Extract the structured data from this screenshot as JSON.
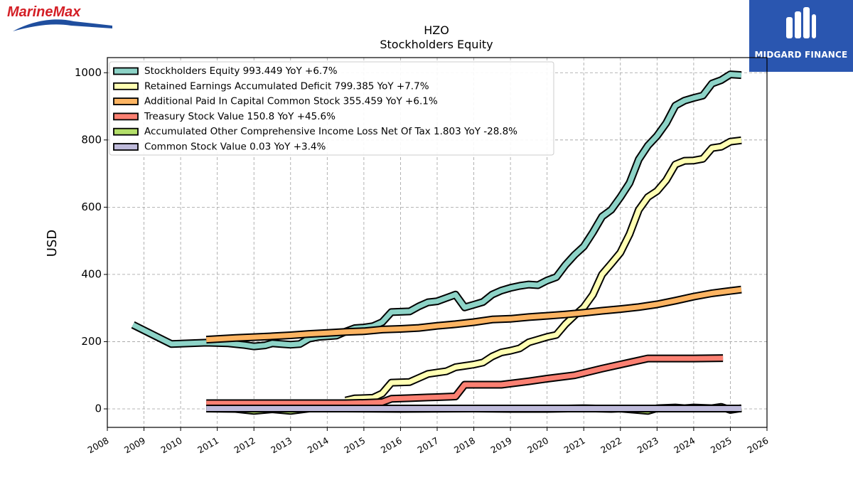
{
  "logos": {
    "left_text": "MarineMax",
    "right_text": "MIDGARD FINANCE"
  },
  "chart_data": {
    "type": "line",
    "title": "HZO",
    "subtitle": "Stockholders  Equity",
    "xlabel": "",
    "ylabel": "USD",
    "xlim": [
      2008,
      2026
    ],
    "ylim": [
      -55,
      1045
    ],
    "x_ticks": [
      "2008",
      "2009",
      "2010",
      "2011",
      "2012",
      "2013",
      "2014",
      "2015",
      "2016",
      "2017",
      "2018",
      "2019",
      "2020",
      "2021",
      "2022",
      "2023",
      "2024",
      "2025",
      "2026"
    ],
    "y_ticks": [
      0,
      200,
      400,
      600,
      800,
      1000
    ],
    "grid": true,
    "legend_position": "top-left",
    "series": [
      {
        "name": "Stockholders Equity",
        "legend": "Stockholders Equity  993.449 YoY +6.7%",
        "color": "#8dd3c7",
        "points": [
          [
            2008.7,
            250
          ],
          [
            2009.75,
            193
          ],
          [
            2010.7,
            197
          ],
          [
            2011.3,
            195
          ],
          [
            2011.75,
            190
          ],
          [
            2012.0,
            186
          ],
          [
            2012.3,
            189
          ],
          [
            2012.5,
            195
          ],
          [
            2012.75,
            193
          ],
          [
            2013.0,
            191
          ],
          [
            2013.25,
            193
          ],
          [
            2013.5,
            209
          ],
          [
            2013.75,
            214
          ],
          [
            2014.0,
            216
          ],
          [
            2014.25,
            218
          ],
          [
            2014.5,
            230
          ],
          [
            2014.75,
            240
          ],
          [
            2015.0,
            242
          ],
          [
            2015.25,
            246
          ],
          [
            2015.5,
            258
          ],
          [
            2015.75,
            288
          ],
          [
            2016.25,
            290
          ],
          [
            2016.5,
            305
          ],
          [
            2016.75,
            317
          ],
          [
            2017.0,
            320
          ],
          [
            2017.25,
            330
          ],
          [
            2017.5,
            340
          ],
          [
            2017.75,
            302
          ],
          [
            2018.0,
            310
          ],
          [
            2018.25,
            318
          ],
          [
            2018.5,
            340
          ],
          [
            2018.75,
            352
          ],
          [
            2019.0,
            360
          ],
          [
            2019.25,
            366
          ],
          [
            2019.5,
            370
          ],
          [
            2019.75,
            368
          ],
          [
            2020.0,
            382
          ],
          [
            2020.25,
            392
          ],
          [
            2020.5,
            428
          ],
          [
            2020.75,
            458
          ],
          [
            2021.0,
            483
          ],
          [
            2021.25,
            525
          ],
          [
            2021.5,
            572
          ],
          [
            2021.75,
            592
          ],
          [
            2022.0,
            630
          ],
          [
            2022.25,
            672
          ],
          [
            2022.5,
            742
          ],
          [
            2022.75,
            783
          ],
          [
            2023.0,
            812
          ],
          [
            2023.25,
            850
          ],
          [
            2023.5,
            902
          ],
          [
            2023.75,
            917
          ],
          [
            2024.0,
            925
          ],
          [
            2024.25,
            932
          ],
          [
            2024.5,
            968
          ],
          [
            2024.75,
            978
          ],
          [
            2025.0,
            995
          ],
          [
            2025.3,
            993
          ]
        ]
      },
      {
        "name": "Retained Earnings Accumulated Deficit",
        "legend": "Retained Earnings Accumulated Deficit  799.385 YoY +7.7%",
        "color": "#ffffb3",
        "points": [
          [
            2014.5,
            25
          ],
          [
            2014.75,
            31
          ],
          [
            2015.0,
            32
          ],
          [
            2015.25,
            33
          ],
          [
            2015.5,
            46
          ],
          [
            2015.75,
            78
          ],
          [
            2016.25,
            80
          ],
          [
            2016.5,
            92
          ],
          [
            2016.75,
            104
          ],
          [
            2017.0,
            108
          ],
          [
            2017.25,
            112
          ],
          [
            2017.5,
            124
          ],
          [
            2017.75,
            128
          ],
          [
            2018.0,
            132
          ],
          [
            2018.25,
            138
          ],
          [
            2018.5,
            156
          ],
          [
            2018.75,
            168
          ],
          [
            2019.0,
            173
          ],
          [
            2019.25,
            180
          ],
          [
            2019.5,
            198
          ],
          [
            2019.75,
            206
          ],
          [
            2020.0,
            214
          ],
          [
            2020.25,
            220
          ],
          [
            2020.5,
            252
          ],
          [
            2020.75,
            278
          ],
          [
            2021.0,
            302
          ],
          [
            2021.25,
            340
          ],
          [
            2021.5,
            400
          ],
          [
            2021.75,
            432
          ],
          [
            2022.0,
            465
          ],
          [
            2022.25,
            520
          ],
          [
            2022.5,
            592
          ],
          [
            2022.75,
            630
          ],
          [
            2023.0,
            648
          ],
          [
            2023.25,
            680
          ],
          [
            2023.5,
            727
          ],
          [
            2023.75,
            738
          ],
          [
            2024.0,
            739
          ],
          [
            2024.25,
            744
          ],
          [
            2024.5,
            776
          ],
          [
            2024.75,
            780
          ],
          [
            2025.0,
            795
          ],
          [
            2025.3,
            799
          ]
        ]
      },
      {
        "name": "Additional Paid In Capital Common Stock",
        "legend": "Additional Paid In Capital Common Stock  355.459 YoY +6.1%",
        "color": "#fdb462",
        "points": [
          [
            2010.7,
            206
          ],
          [
            2011.5,
            211
          ],
          [
            2012.5,
            216
          ],
          [
            2013.0,
            219
          ],
          [
            2013.5,
            223
          ],
          [
            2014.0,
            226
          ],
          [
            2014.5,
            229
          ],
          [
            2015.0,
            231
          ],
          [
            2015.5,
            236
          ],
          [
            2016.0,
            238
          ],
          [
            2016.5,
            241
          ],
          [
            2017.0,
            247
          ],
          [
            2017.5,
            252
          ],
          [
            2018.0,
            258
          ],
          [
            2018.5,
            266
          ],
          [
            2019.0,
            268
          ],
          [
            2019.5,
            273
          ],
          [
            2020.0,
            277
          ],
          [
            2020.5,
            281
          ],
          [
            2021.0,
            286
          ],
          [
            2021.5,
            292
          ],
          [
            2022.0,
            297
          ],
          [
            2022.5,
            303
          ],
          [
            2023.0,
            311
          ],
          [
            2023.5,
            322
          ],
          [
            2024.0,
            334
          ],
          [
            2024.5,
            344
          ],
          [
            2025.0,
            351
          ],
          [
            2025.3,
            355
          ]
        ]
      },
      {
        "name": "Treasury Stock Value",
        "legend": "Treasury Stock Value  150.8 YoY +45.6%",
        "color": "#fb8072",
        "points": [
          [
            2010.7,
            17
          ],
          [
            2011.5,
            17
          ],
          [
            2012.5,
            17
          ],
          [
            2013.5,
            17
          ],
          [
            2014.5,
            17
          ],
          [
            2015.0,
            18
          ],
          [
            2015.5,
            20
          ],
          [
            2015.75,
            30
          ],
          [
            2016.25,
            32
          ],
          [
            2016.75,
            34
          ],
          [
            2017.0,
            35
          ],
          [
            2017.5,
            37
          ],
          [
            2017.75,
            72
          ],
          [
            2018.0,
            72
          ],
          [
            2018.75,
            72
          ],
          [
            2019.5,
            82
          ],
          [
            2020.0,
            90
          ],
          [
            2020.75,
            100
          ],
          [
            2021.5,
            120
          ],
          [
            2022.0,
            132
          ],
          [
            2022.75,
            150
          ],
          [
            2023.5,
            150
          ],
          [
            2024.0,
            150
          ],
          [
            2024.8,
            151
          ]
        ]
      },
      {
        "name": "Accumulated Other Comprehensive Income Loss Net Of Tax",
        "legend": "Accumulated Other Comprehensive Income Loss Net Of Tax  1.803 YoY -28.8%",
        "color": "#b3de69",
        "points": [
          [
            2010.7,
            1
          ],
          [
            2011.5,
            0
          ],
          [
            2012.0,
            -6
          ],
          [
            2012.5,
            -1
          ],
          [
            2013.0,
            -6
          ],
          [
            2013.5,
            1
          ],
          [
            2014.5,
            1
          ],
          [
            2016.0,
            0
          ],
          [
            2018.0,
            1
          ],
          [
            2019.0,
            0
          ],
          [
            2020.0,
            0
          ],
          [
            2021.0,
            2
          ],
          [
            2021.75,
            0
          ],
          [
            2022.0,
            1
          ],
          [
            2022.75,
            -6
          ],
          [
            2023.0,
            2
          ],
          [
            2023.5,
            4
          ],
          [
            2023.75,
            2
          ],
          [
            2024.0,
            4
          ],
          [
            2024.5,
            2
          ],
          [
            2024.75,
            6
          ],
          [
            2025.0,
            -3
          ],
          [
            2025.3,
            2
          ]
        ]
      },
      {
        "name": "Common Stock Value",
        "legend": "Common Stock Value  0.03 YoY +3.4%",
        "color": "#bebada",
        "points": [
          [
            2010.7,
            1
          ],
          [
            2025.3,
            1
          ]
        ]
      }
    ]
  }
}
